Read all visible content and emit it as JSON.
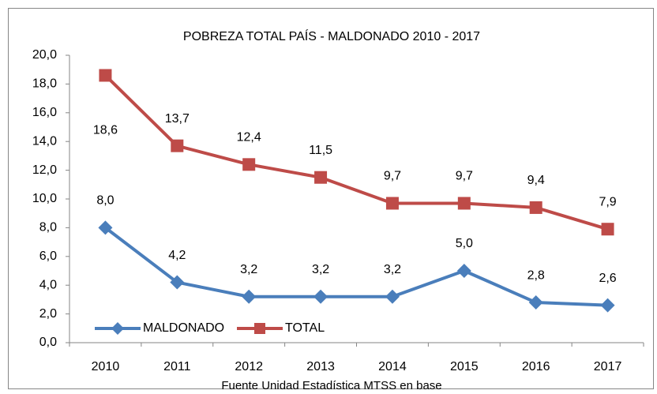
{
  "chart_data": {
    "type": "line",
    "title": "POBREZA TOTAL PAÍS - MALDONADO 2010 - 2017",
    "source": "Fuente Unidad Estadística MTSS en base",
    "categories": [
      "2010",
      "2011",
      "2012",
      "2013",
      "2014",
      "2015",
      "2016",
      "2017"
    ],
    "series": [
      {
        "name": "MALDONADO",
        "color": "#4a7ebb",
        "marker": "diamond",
        "values": [
          8.0,
          4.2,
          3.2,
          3.2,
          3.2,
          5.0,
          2.8,
          2.6
        ],
        "value_labels": [
          "8,0",
          "4,2",
          "3,2",
          "3,2",
          "3,2",
          "5,0",
          "2,8",
          "2,6"
        ]
      },
      {
        "name": "TOTAL",
        "color": "#be4b48",
        "marker": "square",
        "values": [
          18.6,
          13.7,
          12.4,
          11.5,
          9.7,
          9.7,
          9.4,
          7.9
        ],
        "value_labels": [
          "18,6",
          "13,7",
          "12,4",
          "11,5",
          "9,7",
          "9,7",
          "9,4",
          "7,9"
        ]
      }
    ],
    "ylim": [
      0,
      20
    ],
    "yticks": [
      {
        "value": 0,
        "label": "0,0"
      },
      {
        "value": 2,
        "label": "2,0"
      },
      {
        "value": 4,
        "label": "4,0"
      },
      {
        "value": 6,
        "label": "6,0"
      },
      {
        "value": 8,
        "label": "8,0"
      },
      {
        "value": 10,
        "label": "10,0"
      },
      {
        "value": 12,
        "label": "12,0"
      },
      {
        "value": 14,
        "label": "14,0"
      },
      {
        "value": 16,
        "label": "16,0"
      },
      {
        "value": 18,
        "label": "18,0"
      },
      {
        "value": 20,
        "label": "20,0"
      }
    ],
    "grid": false,
    "legend": "bottom-left"
  }
}
